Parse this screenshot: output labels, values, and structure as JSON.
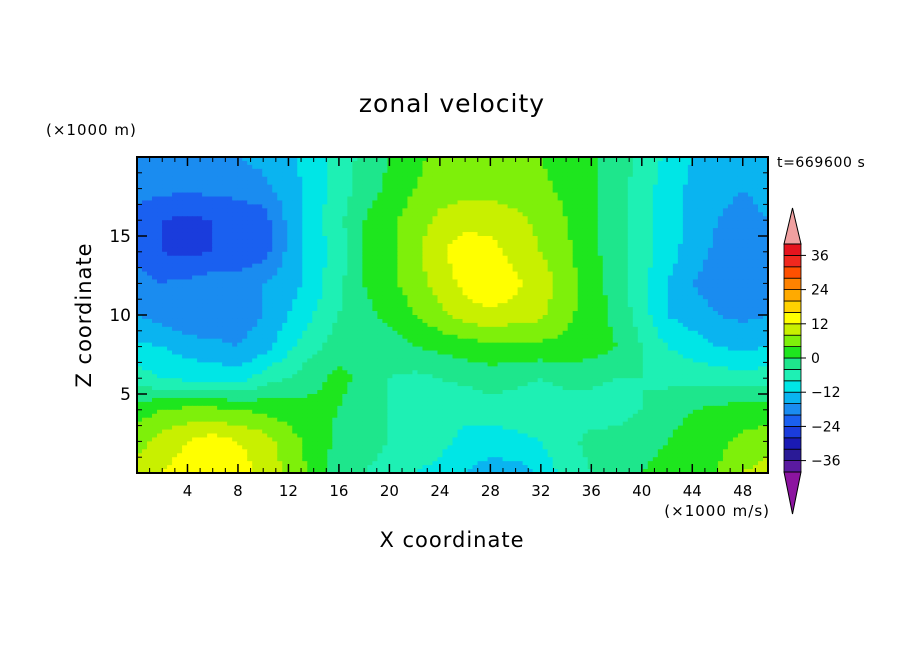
{
  "chart_data": {
    "type": "heatmap",
    "title": "zonal velocity",
    "xlabel": "X coordinate",
    "ylabel": "Z coordinate",
    "x_unit": "(×1000 m/s)",
    "y_unit": "(×1000 m)",
    "time_label": "t=669600 s",
    "xlim": [
      0,
      50
    ],
    "ylim": [
      0,
      20
    ],
    "x_ticks": [
      4,
      8,
      12,
      16,
      20,
      24,
      28,
      32,
      36,
      40,
      44,
      48
    ],
    "y_ticks": [
      5,
      10,
      15
    ],
    "colorbar": {
      "min": -40,
      "max": 40,
      "step": 4,
      "tick_values": [
        -36,
        -24,
        -12,
        0,
        12,
        24,
        36
      ],
      "tick_labels": [
        "−36",
        "−24",
        "−12",
        "0",
        "12",
        "24",
        "36"
      ],
      "colors": [
        "#5a1aa0",
        "#2a1a96",
        "#1a1ab4",
        "#1a3cdc",
        "#1a60f0",
        "#1a8cf0",
        "#0ab4f0",
        "#00e6e6",
        "#1ef0b4",
        "#1ee68c",
        "#1ee61e",
        "#7ef00a",
        "#c8f000",
        "#ffff00",
        "#ffd200",
        "#ffaa00",
        "#ff8200",
        "#ff5000",
        "#f0281e",
        "#e6141e"
      ],
      "under_color": "#8c14a0",
      "over_color": "#f0a0a0"
    },
    "field": {
      "nx": 26,
      "nz": 11,
      "x_values": [
        0,
        2,
        4,
        6,
        8,
        10,
        12,
        14,
        16,
        18,
        20,
        22,
        24,
        26,
        28,
        30,
        32,
        34,
        36,
        38,
        40,
        42,
        44,
        46,
        48,
        50
      ],
      "z_values": [
        0,
        2,
        4,
        6,
        8,
        10,
        12,
        14,
        16,
        18,
        20
      ],
      "values": [
        [
          10,
          12,
          14,
          15,
          14,
          11,
          7,
          3,
          -2,
          -4,
          -5,
          -8,
          -9,
          -12,
          -14,
          -14,
          -11,
          -6,
          -4,
          -2,
          0,
          1,
          2,
          4,
          8,
          10
        ],
        [
          6,
          10,
          12,
          14,
          12,
          10,
          6,
          2,
          -1,
          -3,
          -4,
          -6,
          -7,
          -9,
          -10,
          -9,
          -8,
          -5,
          -3,
          -2,
          -1,
          0,
          2,
          3,
          5,
          6
        ],
        [
          2,
          4,
          5,
          5,
          4,
          3,
          2,
          1,
          0,
          -2,
          -4,
          -5,
          -6,
          -7,
          -6,
          -6,
          -6,
          -6,
          -6,
          -6,
          -4,
          -2,
          0,
          1,
          2,
          2
        ],
        [
          -6,
          -8,
          -9,
          -9,
          -10,
          -6,
          -4,
          -1,
          1,
          -1,
          -4,
          -5,
          -4,
          -3,
          -2,
          -3,
          -4,
          -3,
          -3,
          -4,
          -4,
          -5,
          -5,
          -6,
          -6,
          -6
        ],
        [
          -11,
          -12,
          -14,
          -15,
          -16,
          -14,
          -9,
          -5,
          -2,
          -1,
          -2,
          0,
          1,
          2,
          3,
          3,
          3,
          3,
          2,
          0,
          -4,
          -8,
          -10,
          -12,
          -13,
          -12
        ],
        [
          -16,
          -18,
          -20,
          -19,
          -18,
          -16,
          -12,
          -8,
          -4,
          -1,
          1,
          4,
          7,
          10,
          11,
          10,
          9,
          5,
          2,
          -1,
          -6,
          -12,
          -14,
          -16,
          -17,
          -16
        ],
        [
          -18,
          -20,
          -19,
          -18,
          -18,
          -16,
          -14,
          -10,
          -5,
          0,
          3,
          6,
          10,
          13,
          16,
          13,
          10,
          6,
          2,
          -2,
          -7,
          -12,
          -16,
          -18,
          -19,
          -18
        ],
        [
          -22,
          -24,
          -25,
          -24,
          -23,
          -22,
          -15,
          -10,
          -6,
          0,
          3,
          7,
          11,
          15,
          14,
          10,
          8,
          5,
          1,
          -2,
          -6,
          -10,
          -14,
          -17,
          -19,
          -18
        ],
        [
          -22,
          -24,
          -25,
          -24,
          -24,
          -22,
          -15,
          -10,
          -5,
          0,
          3,
          6,
          9,
          10,
          10,
          9,
          7,
          4,
          1,
          -2,
          -6,
          -10,
          -13,
          -16,
          -17,
          -16
        ],
        [
          -18,
          -19,
          -19,
          -19,
          -18,
          -17,
          -14,
          -10,
          -6,
          -2,
          1,
          4,
          6,
          7,
          7,
          6,
          5,
          3,
          1,
          -2,
          -6,
          -10,
          -13,
          -15,
          -16,
          -15
        ],
        [
          -16,
          -17,
          -17,
          -17,
          -16,
          -15,
          -13,
          -10,
          -6,
          -3,
          0,
          3,
          5,
          6,
          6,
          5,
          4,
          2,
          1,
          -2,
          -5,
          -9,
          -12,
          -14,
          -15,
          -14
        ]
      ]
    }
  }
}
